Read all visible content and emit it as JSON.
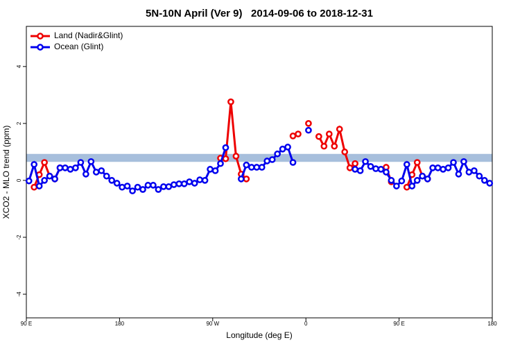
{
  "chart_data": {
    "type": "line",
    "title": "5N-10N April (Ver 9)   2014-09-06 to 2018-12-31",
    "x_label": "Longitude (deg E)",
    "y_label": "XCO2 - MLO trend (ppm)",
    "xlim": [
      90,
      540
    ],
    "xticks": [
      {
        "value": 90,
        "label": "90 E"
      },
      180,
      {
        "value": 270,
        "label": "90 W"
      },
      {
        "value": 360,
        "label": "0"
      },
      {
        "value": 450,
        "label": "90 E"
      },
      {
        "value": 540,
        "label": "180"
      }
    ],
    "ylim": [
      -4.83,
      5.41
    ],
    "yticks": [
      -4,
      -2,
      0,
      2,
      4
    ],
    "band": [
      0.65,
      0.93
    ],
    "band_color": "#a7bfdc",
    "legend": "top-left",
    "x": [
      92.5,
      97.5,
      102.5,
      107.5,
      112.5,
      117.5,
      122.5,
      127.5,
      132.5,
      137.5,
      142.5,
      147.5,
      152.5,
      157.5,
      162.5,
      167.5,
      172.5,
      177.5,
      182.5,
      187.5,
      192.5,
      197.5,
      202.5,
      207.5,
      212.5,
      217.5,
      222.5,
      227.5,
      232.5,
      237.5,
      242.5,
      247.5,
      252.5,
      257.5,
      262.5,
      267.5,
      272.5,
      277.5,
      282.5,
      287.5,
      292.5,
      297.5,
      302.5,
      307.5,
      312.5,
      317.5,
      322.5,
      327.5,
      332.5,
      337.5,
      342.5,
      347.5,
      352.5,
      357.5,
      362.5,
      367.5,
      372.5,
      377.5,
      382.5,
      387.5,
      392.5,
      397.5,
      402.5,
      407.5,
      412.5,
      417.5,
      422.5,
      427.5,
      432.5,
      437.5,
      442.5,
      447.5,
      452.5,
      457.5,
      462.5,
      467.5,
      472.5,
      477.5,
      482.5,
      487.5,
      492.5,
      497.5,
      502.5,
      507.5,
      512.5,
      517.5,
      522.5,
      527.5,
      532.5,
      537.5
    ],
    "series": [
      {
        "name": "Land (Nadir&Glint)",
        "color": "#ee0000",
        "values": [
          null,
          -0.24,
          0.2,
          0.63,
          0.15,
          0.05,
          0.44,
          null,
          null,
          null,
          null,
          null,
          null,
          null,
          null,
          null,
          null,
          null,
          null,
          null,
          null,
          null,
          null,
          null,
          null,
          null,
          null,
          null,
          null,
          null,
          null,
          null,
          null,
          null,
          null,
          null,
          null,
          0.78,
          0.76,
          2.76,
          0.85,
          0.22,
          0.05,
          null,
          null,
          null,
          null,
          null,
          null,
          null,
          null,
          1.56,
          1.63,
          null,
          2.0,
          null,
          1.54,
          1.2,
          1.63,
          1.2,
          1.8,
          1.0,
          0.44,
          0.59,
          null,
          null,
          null,
          null,
          null,
          0.46,
          -0.05,
          null,
          null,
          -0.24,
          0.2,
          0.63,
          0.15,
          0.05,
          null,
          null,
          null,
          null,
          null,
          null,
          null,
          null,
          null,
          null,
          null,
          null
        ]
      },
      {
        "name": "Ocean (Glint)",
        "color": "#0000ee",
        "values": [
          -0.02,
          0.56,
          -0.2,
          0,
          0.15,
          0.05,
          0.44,
          0.44,
          0.39,
          0.44,
          0.63,
          0.22,
          0.66,
          0.29,
          0.34,
          0.15,
          0,
          -0.1,
          -0.24,
          -0.2,
          -0.37,
          -0.24,
          -0.32,
          -0.17,
          -0.17,
          -0.32,
          -0.22,
          -0.22,
          -0.15,
          -0.12,
          -0.12,
          -0.05,
          -0.1,
          0.02,
          0,
          0.39,
          0.34,
          0.59,
          1.15,
          null,
          null,
          0.05,
          0.54,
          0.46,
          0.46,
          0.46,
          0.68,
          0.73,
          0.93,
          1.1,
          1.17,
          0.63,
          null,
          null,
          1.76,
          null,
          null,
          null,
          null,
          null,
          null,
          null,
          null,
          0.39,
          0.34,
          0.66,
          0.49,
          0.41,
          0.39,
          0.29,
          0,
          -0.2,
          -0.02,
          0.56,
          -0.2,
          0,
          0.15,
          0.05,
          0.44,
          0.44,
          0.39,
          0.44,
          0.63,
          0.22,
          0.66,
          0.29,
          0.34,
          0.15,
          0,
          -0.1
        ]
      }
    ]
  }
}
